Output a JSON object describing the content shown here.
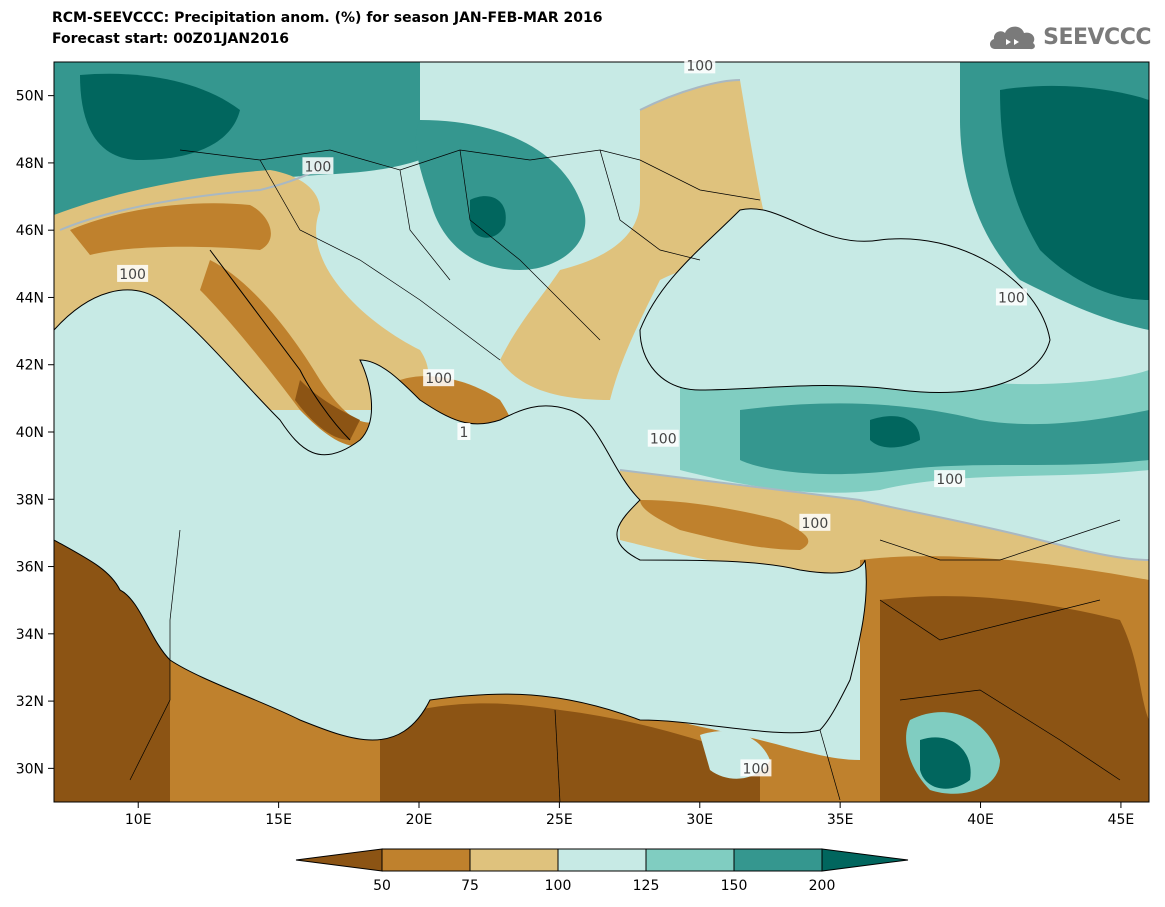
{
  "title": {
    "line1": "RCM-SEEVCCC: Precipitation anom. (%) for season JAN-FEB-MAR 2016",
    "line2": "Forecast start: 00Z01JAN2016"
  },
  "logo": {
    "text": "SEEVCCC",
    "icon": "cloud-icon"
  },
  "axes": {
    "lat_labels": [
      "50N",
      "48N",
      "46N",
      "44N",
      "42N",
      "40N",
      "38N",
      "36N",
      "34N",
      "32N",
      "30N"
    ],
    "lat_values": [
      50,
      48,
      46,
      44,
      42,
      40,
      38,
      36,
      34,
      32,
      30
    ],
    "lon_labels": [
      "10E",
      "15E",
      "20E",
      "25E",
      "30E",
      "35E",
      "40E",
      "45E"
    ],
    "lon_values": [
      10,
      15,
      20,
      25,
      30,
      35,
      40,
      45
    ],
    "lon_range": [
      7,
      46
    ],
    "lat_range": [
      29,
      51
    ]
  },
  "colorbar": {
    "bins": [
      {
        "color": "#8c5414",
        "range": "< 50"
      },
      {
        "color": "#bf812d",
        "range": "50-75"
      },
      {
        "color": "#dfc27d",
        "range": "75-100"
      },
      {
        "color": "#c7eae5",
        "range": "100-125"
      },
      {
        "color": "#80cdc1",
        "range": "125-150"
      },
      {
        "color": "#35978f",
        "range": "150-200"
      },
      {
        "color": "#01665e",
        "range": "> 200"
      }
    ],
    "tick_labels": [
      "50",
      "75",
      "100",
      "125",
      "150",
      "200"
    ]
  },
  "contour_labels": [
    {
      "text": "100",
      "lon": 30.0,
      "lat": 50.9
    },
    {
      "text": "100",
      "lon": 16.4,
      "lat": 47.9
    },
    {
      "text": "100",
      "lon": 9.8,
      "lat": 44.7
    },
    {
      "text": "100",
      "lon": 20.7,
      "lat": 41.6
    },
    {
      "text": "1",
      "lon": 21.6,
      "lat": 40.0
    },
    {
      "text": "100",
      "lon": 28.7,
      "lat": 39.8
    },
    {
      "text": "100",
      "lon": 41.1,
      "lat": 44.0
    },
    {
      "text": "100",
      "lon": 38.9,
      "lat": 38.6
    },
    {
      "text": "100",
      "lon": 34.1,
      "lat": 37.3
    },
    {
      "text": "100",
      "lon": 32.0,
      "lat": 30.0
    }
  ]
}
